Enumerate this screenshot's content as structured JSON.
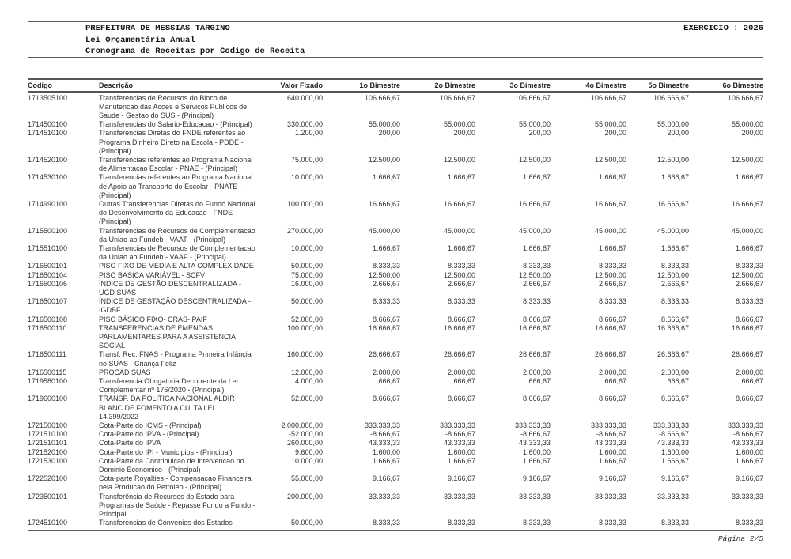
{
  "header": {
    "org": "PREFEITURA DE MESSIAS TARGINO",
    "subtitle1": "Lei Orçamentária Anual",
    "subtitle2": "Cronograma de Receitas por Codigo de Receita",
    "exercise_label": "EXERCICIO : 2026"
  },
  "table": {
    "columns": [
      "Codigo",
      "Descrição",
      "Valor Fixado",
      "1o Bimestre",
      "2o Bimestre",
      "3o Bimestre",
      "4o Bimestre",
      "5o Bimestre",
      "6o Bimestre"
    ],
    "rows": [
      {
        "codigo": "1713505100",
        "descricao": "Transferencias de Recursos do Bloco de\nManutencao das Acoes e Servicos Publicos de\nSaude - Gestao do SUS - (Principal)",
        "valores": [
          "640.000,00",
          "106.666,67",
          "106.666,67",
          "106.666,67",
          "106.666,67",
          "106.666,67",
          "106.666,67"
        ]
      },
      {
        "codigo": "1714500100",
        "descricao": "Transferencias do Salario-Educacao - (Principal)",
        "valores": [
          "330.000,00",
          "55.000,00",
          "55.000,00",
          "55.000,00",
          "55.000,00",
          "55.000,00",
          "55.000,00"
        ]
      },
      {
        "codigo": "1714510100",
        "descricao": "Transferencias Diretas do FNDE referentes ao\nPrograma Dinheiro Direto na Escola - PDDE -\n(Principal)",
        "valores": [
          "1.200,00",
          "200,00",
          "200,00",
          "200,00",
          "200,00",
          "200,00",
          "200,00"
        ]
      },
      {
        "codigo": "1714520100",
        "descricao": "Transferencias referentes ao Programa Nacional\nde Alimentacao Escolar - PNAE - (Principal)",
        "valores": [
          "75.000,00",
          "12.500,00",
          "12.500,00",
          "12.500,00",
          "12.500,00",
          "12.500,00",
          "12.500,00"
        ]
      },
      {
        "codigo": "1714530100",
        "descricao": "Transferencias referentes ao Programa Nacional\nde Apoio ao Transporte do Escolar - PNATE -\n(Principal)",
        "valores": [
          "10.000,00",
          "1.666,67",
          "1.666,67",
          "1.666,67",
          "1.666,67",
          "1.666,67",
          "1.666,67"
        ]
      },
      {
        "codigo": "1714990100",
        "descricao": "Outras Transferencias Diretas do Fundo Nacional\ndo Desenvolvimento da Educacao - FNDE -\n(Principal)",
        "valores": [
          "100.000,00",
          "16.666,67",
          "16.666,67",
          "16.666,67",
          "16.666,67",
          "16.666,67",
          "16.666,67"
        ]
      },
      {
        "codigo": "1715500100",
        "descricao": "Transferencias de Recursos de Complementacao\nda Uniao ao Fundeb - VAAT - (Principal)",
        "valores": [
          "270.000,00",
          "45.000,00",
          "45.000,00",
          "45.000,00",
          "45.000,00",
          "45.000,00",
          "45.000,00"
        ]
      },
      {
        "codigo": "1715510100",
        "descricao": "Transferencias de Recursos de Complementacao\nda Uniao ao Fundeb - VAAF - (Principal)",
        "valores": [
          "10.000,00",
          "1.666,67",
          "1.666,67",
          "1.666,67",
          "1.666,67",
          "1.666,67",
          "1.666,67"
        ]
      },
      {
        "codigo": "1716500101",
        "descricao": "PISO FIXO DE MÉDIA E ALTA COMPLEXIDADE",
        "valores": [
          "50.000,00",
          "8.333,33",
          "8.333,33",
          "8.333,33",
          "8.333,33",
          "8.333,33",
          "8.333,33"
        ]
      },
      {
        "codigo": "1716500104",
        "descricao": "PISO BASICA VARIÁVEL - SCFV",
        "valores": [
          "75.000,00",
          "12.500,00",
          "12.500,00",
          "12.500,00",
          "12.500,00",
          "12.500,00",
          "12.500,00"
        ]
      },
      {
        "codigo": "1716500106",
        "descricao": "ÍNDICE DE GESTÃO DESCENTRALIZADA -\nUGD SUAS",
        "valores": [
          "16.000,00",
          "2.666,67",
          "2.666,67",
          "2.666,67",
          "2.666,67",
          "2.666,67",
          "2.666,67"
        ]
      },
      {
        "codigo": "1716500107",
        "descricao": "ÍNDICE DE GESTAÇÃO DESCENTRALIZADA -\nIGDBF",
        "valores": [
          "50.000,00",
          "8.333,33",
          "8.333,33",
          "8.333,33",
          "8.333,33",
          "8.333,33",
          "8.333,33"
        ]
      },
      {
        "codigo": "1716500108",
        "descricao": "PISO BÁSICO FIXO- CRAS- PAIF",
        "valores": [
          "52.000,00",
          "8.666,67",
          "8.666,67",
          "8.666,67",
          "8.666,67",
          "8.666,67",
          "8.666,67"
        ]
      },
      {
        "codigo": "1716500110",
        "descricao": "TRANSFERENCIAS DE EMENDAS\nPARLAMENTARES PARA A ASSISTENCIA\nSOCIAL",
        "valores": [
          "100.000,00",
          "16.666,67",
          "16.666,67",
          "16.666,67",
          "16.666,67",
          "16.666,67",
          "16.666,67"
        ]
      },
      {
        "codigo": "1716500111",
        "descricao": "Transf. Rec. FNAS - Programa Primeira Infância\nno SUAS - Criança Feliz",
        "valores": [
          "160.000,00",
          "26.666,67",
          "26.666,67",
          "26.666,67",
          "26.666,67",
          "26.666,67",
          "26.666,67"
        ]
      },
      {
        "codigo": "1716500115",
        "descricao": "PROCAD SUAS",
        "valores": [
          "12.000,00",
          "2.000,00",
          "2.000,00",
          "2.000,00",
          "2.000,00",
          "2.000,00",
          "2.000,00"
        ]
      },
      {
        "codigo": "1719580100",
        "descricao": "Transferencia Obrigatoria Decorrente da Lei\nComplementar nº 176/2020 - (Principal)",
        "valores": [
          "4.000,00",
          "666,67",
          "666,67",
          "666,67",
          "666,67",
          "666,67",
          "666,67"
        ]
      },
      {
        "codigo": "1719600100",
        "descricao": "TRANSF. DA POLITICA NACIONAL ALDIR\nBLANC DE FOMENTO A CULTA LEI\n14.399/2022",
        "valores": [
          "52.000,00",
          "8.666,67",
          "8.666,67",
          "8.666,67",
          "8.666,67",
          "8.666,67",
          "8.666,67"
        ]
      },
      {
        "codigo": "1721500100",
        "descricao": "Cota-Parte do ICMS - (Principal)",
        "valores": [
          "2.000.000,00",
          "333.333,33",
          "333.333,33",
          "333.333,33",
          "333.333,33",
          "333.333,33",
          "333.333,33"
        ]
      },
      {
        "codigo": "1721510100",
        "descricao": "Cota-Parte do IPVA - (Principal)",
        "valores": [
          "-52.000,00",
          "-8.666,67",
          "-8.666,67",
          "-8.666,67",
          "-8.666,67",
          "-8.666,67",
          "-8.666,67"
        ]
      },
      {
        "codigo": "1721510101",
        "descricao": "Cota-Parte do IPVA",
        "valores": [
          "260.000,00",
          "43.333,33",
          "43.333,33",
          "43.333,33",
          "43.333,33",
          "43.333,33",
          "43.333,33"
        ]
      },
      {
        "codigo": "1721520100",
        "descricao": "Cota-Parte do IPI - Municipios - (Principal)",
        "valores": [
          "9.600,00",
          "1.600,00",
          "1.600,00",
          "1.600,00",
          "1.600,00",
          "1.600,00",
          "1.600,00"
        ]
      },
      {
        "codigo": "1721530100",
        "descricao": "Cota-Parte da Contribuicao de Intervencao no\nDominio Economico - (Principal)",
        "valores": [
          "10.000,00",
          "1.666,67",
          "1.666,67",
          "1.666,67",
          "1.666,67",
          "1.666,67",
          "1.666,67"
        ]
      },
      {
        "codigo": "1722520100",
        "descricao": "Cota-parte Royalties - Compensacao Financeira\npela Producao do Petroleo - (Principal)",
        "valores": [
          "55.000,00",
          "9.166,67",
          "9.166,67",
          "9.166,67",
          "9.166,67",
          "9.166,67",
          "9.166,67"
        ]
      },
      {
        "codigo": "1723500101",
        "descricao": "Transferência de Recursos do Estado para\nProgramas de Saúde - Repasse Fundo a Fundo -\nPrincipal",
        "valores": [
          "200.000,00",
          "33.333,33",
          "33.333,33",
          "33.333,33",
          "33.333,33",
          "33.333,33",
          "33.333,33"
        ]
      },
      {
        "codigo": "1724510100",
        "descricao": "Transferencias de Convenios dos Estados",
        "valores": [
          "50.000,00",
          "8.333,33",
          "8.333,33",
          "8.333,33",
          "8.333,33",
          "8.333,33",
          "8.333,33"
        ]
      }
    ]
  },
  "footer": {
    "page_label": "Página 2/5"
  }
}
